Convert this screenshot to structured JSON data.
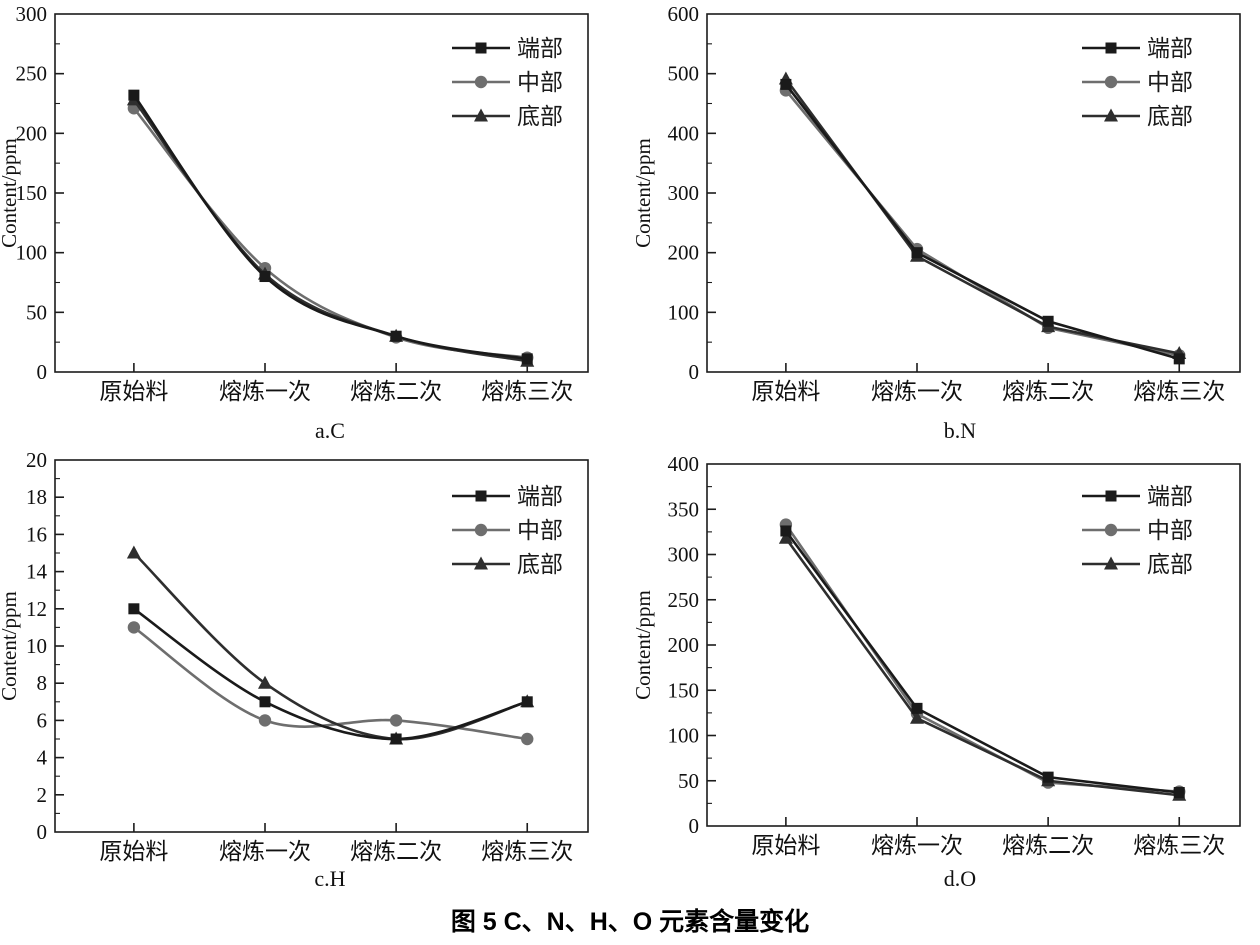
{
  "figure": {
    "caption": "图 5  C、N、H、O 元素含量变化"
  },
  "chart_data": [
    {
      "id": "a",
      "type": "line",
      "subtitle": "a.C",
      "xlabel": "",
      "ylabel": "Content/ppm",
      "ylim": [
        0,
        300
      ],
      "ytick_step": 50,
      "ytick_minor": 25,
      "grid": false,
      "smooth": true,
      "legend_position": "top-right",
      "categories": [
        "原始料",
        "熔炼一次",
        "熔炼二次",
        "熔炼三次"
      ],
      "series": [
        {
          "name": "端部",
          "marker": "square",
          "color": "#1a1a1a",
          "values": [
            232,
            80,
            30,
            11
          ]
        },
        {
          "name": "中部",
          "marker": "circle",
          "color": "#6e6e6e",
          "values": [
            221,
            87,
            29,
            12
          ]
        },
        {
          "name": "底部",
          "marker": "triangle",
          "color": "#2e2e2e",
          "values": [
            228,
            82,
            30,
            9
          ]
        }
      ]
    },
    {
      "id": "b",
      "type": "line",
      "subtitle": "b.N",
      "xlabel": "",
      "ylabel": "Content/ppm",
      "ylim": [
        0,
        600
      ],
      "ytick_step": 100,
      "ytick_minor": 50,
      "grid": false,
      "smooth": false,
      "legend_position": "top-right",
      "categories": [
        "原始料",
        "熔炼一次",
        "熔炼二次",
        "熔炼三次"
      ],
      "series": [
        {
          "name": "端部",
          "marker": "square",
          "color": "#1a1a1a",
          "values": [
            482,
            200,
            85,
            22
          ]
        },
        {
          "name": "中部",
          "marker": "circle",
          "color": "#6e6e6e",
          "values": [
            472,
            206,
            74,
            28
          ]
        },
        {
          "name": "底部",
          "marker": "triangle",
          "color": "#2e2e2e",
          "values": [
            491,
            194,
            76,
            31
          ]
        }
      ]
    },
    {
      "id": "c",
      "type": "line",
      "subtitle": "c.H",
      "xlabel": "",
      "ylabel": "Content/ppm",
      "ylim": [
        0,
        20
      ],
      "ytick_step": 2,
      "ytick_minor": 1,
      "grid": false,
      "smooth": true,
      "legend_position": "top-right",
      "categories": [
        "原始料",
        "熔炼一次",
        "熔炼二次",
        "熔炼三次"
      ],
      "series": [
        {
          "name": "端部",
          "marker": "square",
          "color": "#1a1a1a",
          "values": [
            12,
            7,
            5,
            7
          ]
        },
        {
          "name": "中部",
          "marker": "circle",
          "color": "#6e6e6e",
          "values": [
            11,
            6,
            6,
            5
          ]
        },
        {
          "name": "底部",
          "marker": "triangle",
          "color": "#2e2e2e",
          "values": [
            15,
            8,
            5,
            7
          ]
        }
      ]
    },
    {
      "id": "d",
      "type": "line",
      "subtitle": "d.O",
      "xlabel": "",
      "ylabel": "Content/ppm",
      "ylim": [
        0,
        400
      ],
      "ytick_step": 50,
      "ytick_minor": 25,
      "grid": false,
      "smooth": false,
      "legend_position": "top-right",
      "categories": [
        "原始料",
        "熔炼一次",
        "熔炼二次",
        "熔炼三次"
      ],
      "series": [
        {
          "name": "端部",
          "marker": "square",
          "color": "#1a1a1a",
          "values": [
            326,
            130,
            54,
            37
          ]
        },
        {
          "name": "中部",
          "marker": "circle",
          "color": "#6e6e6e",
          "values": [
            333,
            124,
            48,
            38
          ]
        },
        {
          "name": "底部",
          "marker": "triangle",
          "color": "#2e2e2e",
          "values": [
            318,
            119,
            50,
            34
          ]
        }
      ]
    }
  ]
}
